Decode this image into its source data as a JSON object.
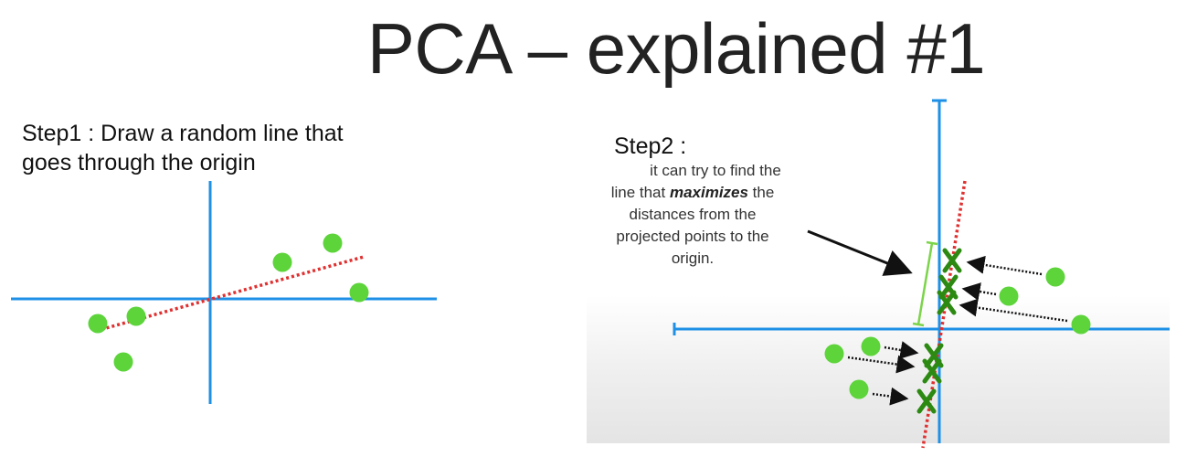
{
  "title": "PCA – explained #1",
  "step1": {
    "line1": "Step1 : Draw a random line that",
    "line2": "goes through the origin"
  },
  "step2": {
    "heading": "Step2 :",
    "body_line1": "it can try to find the",
    "body_pre": "line that ",
    "body_emph": "maximizes",
    "body_post": " the",
    "body_line3": "distances from the",
    "body_line4": "projected points to the",
    "body_line5": "origin."
  },
  "colors": {
    "axis": "#1e90e6",
    "point": "#5cd43a",
    "random_line": "#e03030",
    "projection": "#2c8a12",
    "bracket": "#7cd44a",
    "arrow": "#111111"
  },
  "icons": {
    "projected_point": "x-mark-icon",
    "data_point": "filled-circle-icon"
  }
}
